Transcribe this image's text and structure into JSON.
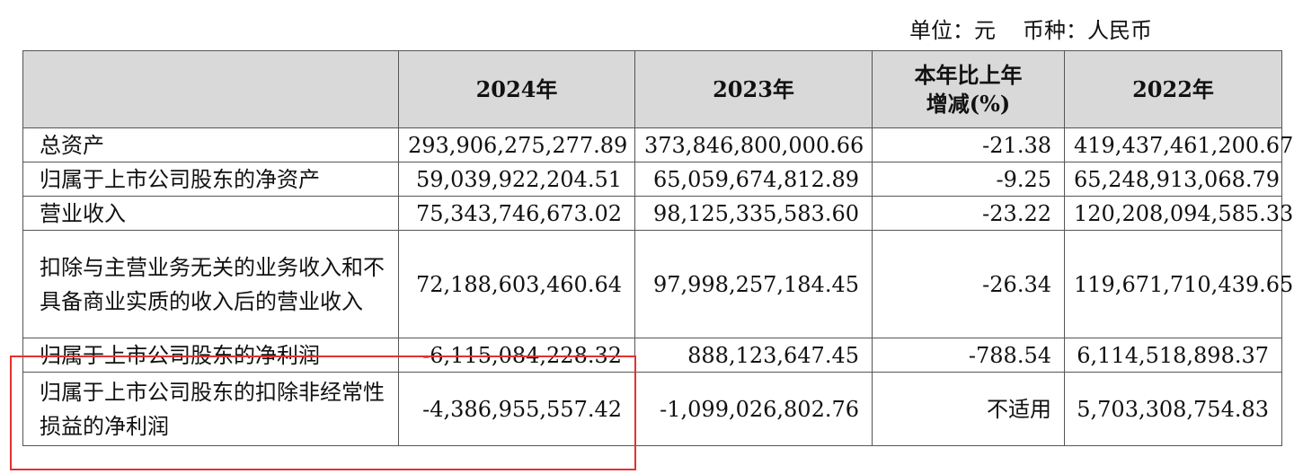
{
  "unit": {
    "unit_label": "单位：元",
    "currency_label": "币种：人民币"
  },
  "header": {
    "col_2024": "2024年",
    "col_2023": "2023年",
    "col_change": "本年比上年增减(%)",
    "col_2022": "2022年"
  },
  "rows": [
    {
      "label": "总资产",
      "v2024": "293,906,275,277.89",
      "v2023": "373,846,800,000.66",
      "change": "-21.38",
      "v2022": "419,437,461,200.67"
    },
    {
      "label": "归属于上市公司股东的净资产",
      "v2024": "59,039,922,204.51",
      "v2023": "65,059,674,812.89",
      "change": "-9.25",
      "v2022": "65,248,913,068.79"
    },
    {
      "label": "营业收入",
      "v2024": "75,343,746,673.02",
      "v2023": "98,125,335,583.60",
      "change": "-23.22",
      "v2022": "120,208,094,585.33"
    },
    {
      "label": "扣除与主营业务无关的业务收入和不具备商业实质的收入后的营业收入",
      "v2024": "72,188,603,460.64",
      "v2023": "97,998,257,184.45",
      "change": "-26.34",
      "v2022": "119,671,710,439.65"
    },
    {
      "label": "归属于上市公司股东的净利润",
      "v2024": "-6,115,084,228.32",
      "v2023": "888,123,647.45",
      "change": "-788.54",
      "v2022": "6,114,518,898.37"
    },
    {
      "label": "归属于上市公司股东的扣除非经常性损益的净利润",
      "v2024": "-4,386,955,557.42",
      "v2023": "-1,099,026,802.76",
      "change": "不适用",
      "v2022": "5,703,308,754.83"
    }
  ],
  "colors": {
    "header_bg": "#d9d9d9",
    "highlight_border": "#e3322f"
  }
}
